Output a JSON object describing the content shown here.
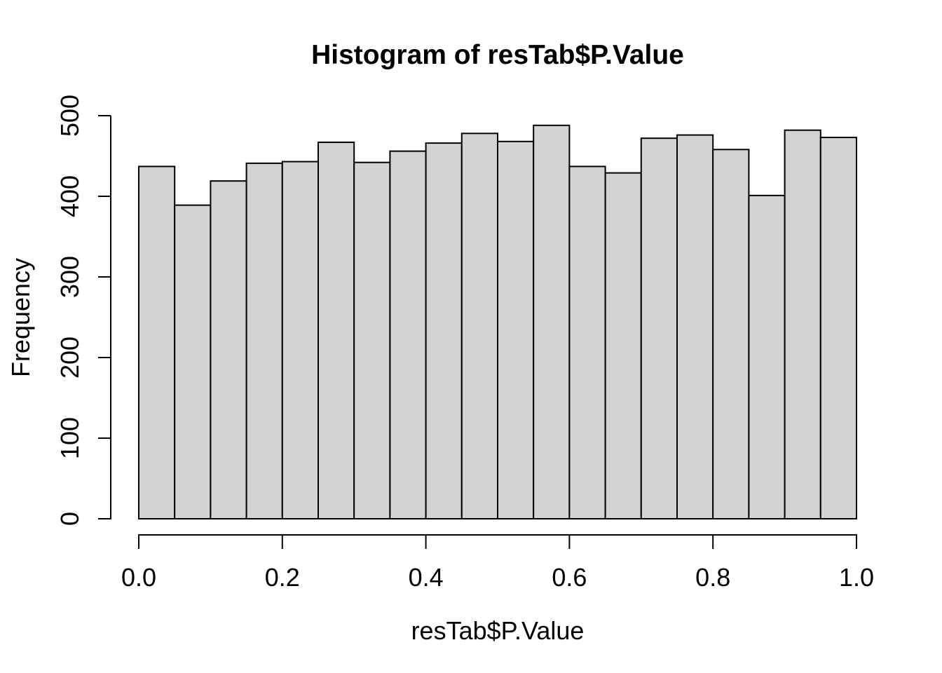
{
  "figure": {
    "background": "#ffffff",
    "text_color": "#000000"
  },
  "chart_data": {
    "type": "bar",
    "subtype": "histogram",
    "title": "Histogram of resTab$P.Value",
    "xlabel": "resTab$P.Value",
    "ylabel": "Frequency",
    "bin_width": 0.05,
    "bin_edges": [
      0.0,
      0.05,
      0.1,
      0.15,
      0.2,
      0.25,
      0.3,
      0.35,
      0.4,
      0.45,
      0.5,
      0.55,
      0.6,
      0.65,
      0.7,
      0.75,
      0.8,
      0.85,
      0.9,
      0.95,
      1.0
    ],
    "values": [
      437,
      389,
      419,
      441,
      443,
      467,
      442,
      456,
      466,
      478,
      468,
      488,
      437,
      429,
      472,
      476,
      458,
      401,
      482,
      473
    ],
    "xlim": [
      0.0,
      1.0
    ],
    "ylim": [
      0,
      500
    ],
    "x_tick_values": [
      0.0,
      0.2,
      0.4,
      0.6,
      0.8,
      1.0
    ],
    "x_tick_labels": [
      "0.0",
      "0.2",
      "0.4",
      "0.6",
      "0.8",
      "1.0"
    ],
    "y_tick_values": [
      0,
      100,
      200,
      300,
      400,
      500
    ],
    "y_tick_labels": [
      "0",
      "100",
      "200",
      "300",
      "400",
      "500"
    ],
    "grid": false,
    "legend": null,
    "bar_fill": "#d3d3d3",
    "bar_stroke": "#000000",
    "axis_color": "#000000"
  }
}
